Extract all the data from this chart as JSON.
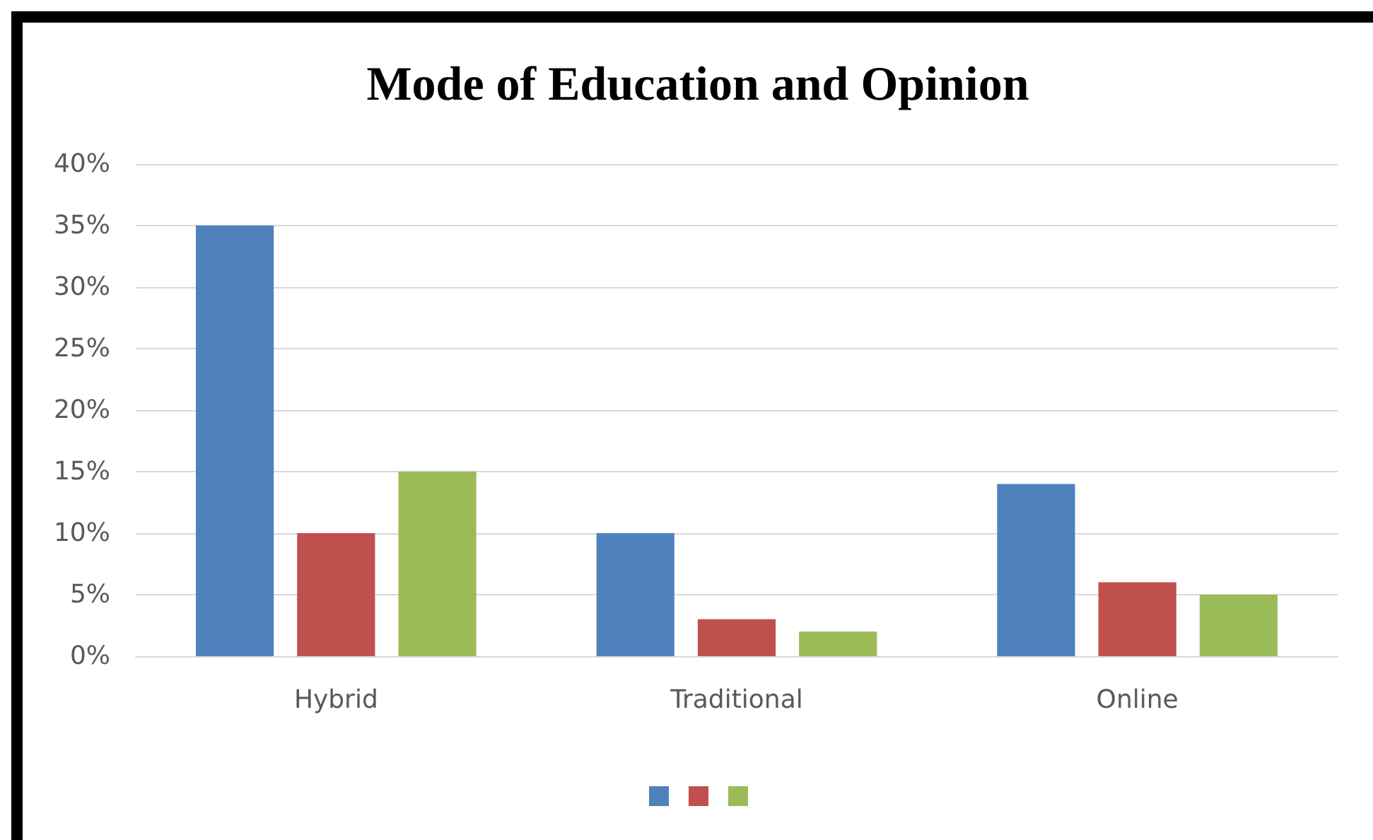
{
  "chart_data": {
    "type": "bar",
    "title": "Mode of Education and Opinion",
    "categories": [
      "Hybrid",
      "Traditional",
      "Online"
    ],
    "series": [
      {
        "color": "#4f81bd",
        "values": [
          35,
          10,
          14
        ]
      },
      {
        "color": "#c0504d",
        "values": [
          10,
          3,
          6
        ]
      },
      {
        "color": "#9bbb59",
        "values": [
          15,
          2,
          5
        ]
      }
    ],
    "ylim": [
      0,
      40
    ],
    "yticks": [
      {
        "value": 0,
        "label": "0%"
      },
      {
        "value": 5,
        "label": "5%"
      },
      {
        "value": 10,
        "label": "10%"
      },
      {
        "value": 15,
        "label": "15%"
      },
      {
        "value": 20,
        "label": "20%"
      },
      {
        "value": 25,
        "label": "25%"
      },
      {
        "value": 30,
        "label": "30%"
      },
      {
        "value": 35,
        "label": "35%"
      },
      {
        "value": 40,
        "label": "40%"
      }
    ],
    "grid": "y"
  }
}
